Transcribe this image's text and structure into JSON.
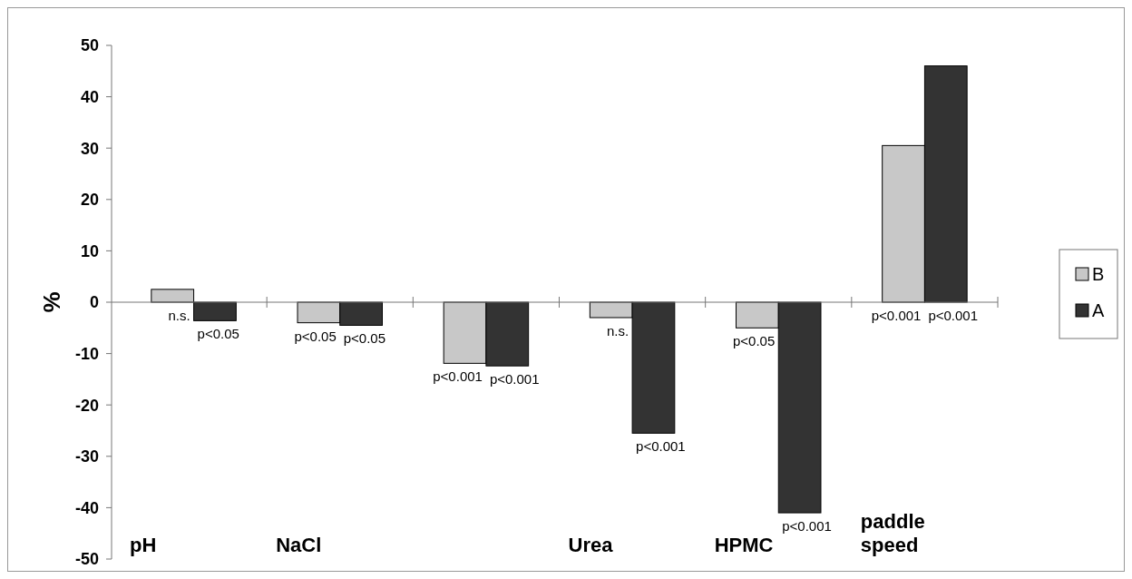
{
  "chart_data": {
    "type": "bar",
    "ylabel": "%",
    "categories": [
      "pH",
      "NaCl",
      null,
      "Urea",
      "HPMC",
      "paddle speed"
    ],
    "series": [
      {
        "name": "B",
        "color": "#c8c8c8",
        "values": [
          2.5,
          -4,
          -11.9,
          -3,
          -5,
          30.5
        ],
        "value_labels": [
          "n.s.",
          "p<0.05",
          "p<0.001",
          "n.s.",
          "p<0.05",
          "p<0.001"
        ]
      },
      {
        "name": "A",
        "color": "#333333",
        "values": [
          -3.6,
          -4.5,
          -12.4,
          -25.5,
          -41,
          46
        ],
        "value_labels": [
          "p<0.05",
          "p<0.05",
          "p<0.001",
          "p<0.001",
          "p<0.001",
          "p<0.001"
        ]
      }
    ],
    "ylim": [
      -50,
      50
    ],
    "yticks": [
      -50,
      -40,
      -30,
      -20,
      -10,
      0,
      10,
      20,
      30,
      40,
      50
    ],
    "legend": "right"
  }
}
